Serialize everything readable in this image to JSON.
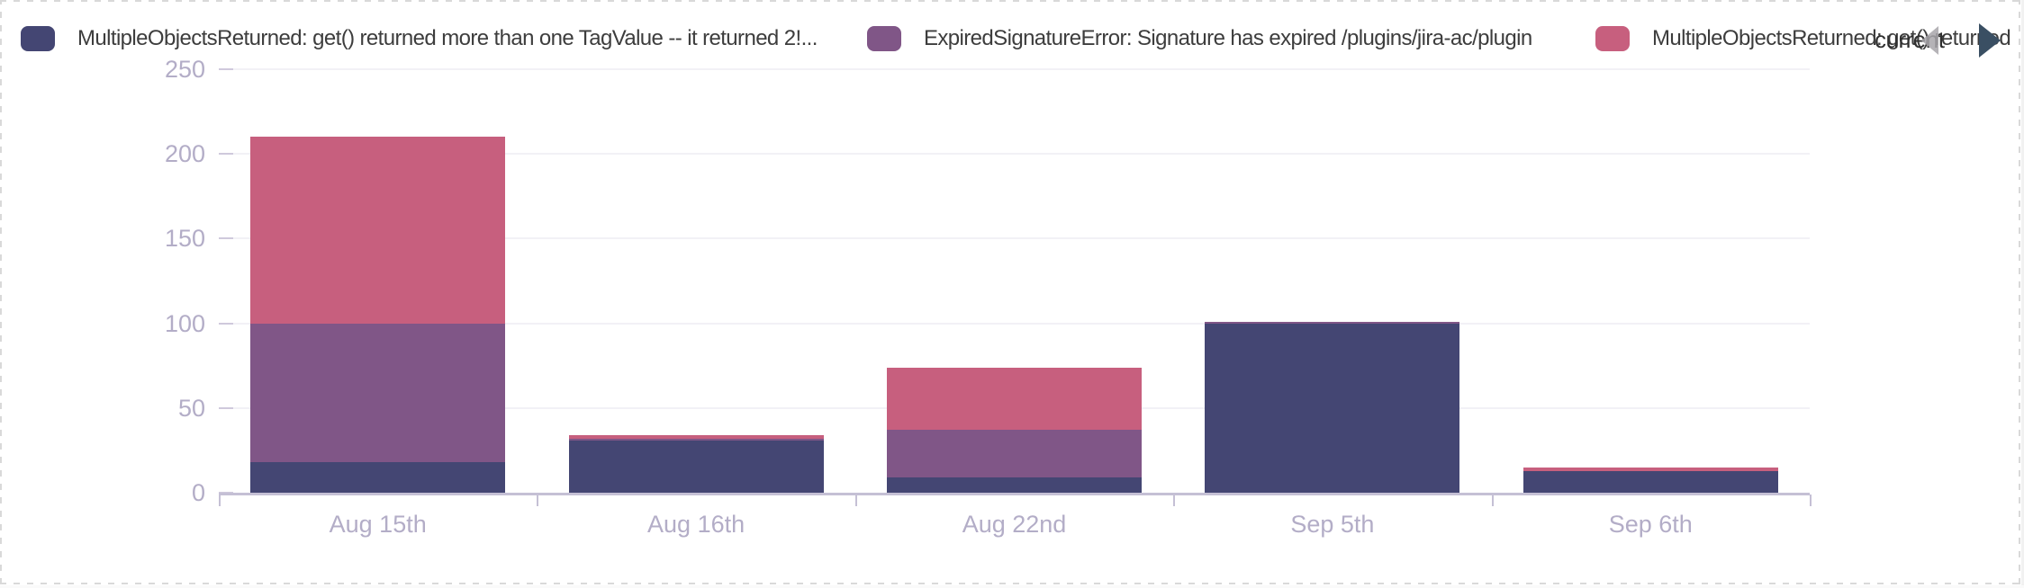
{
  "overlay": {
    "label": "current",
    "prev_icon": "left-triangle",
    "next_icon": "right-triangle",
    "prev_color": "#a8a6aa",
    "next_color": "#3a4f63"
  },
  "legend": {
    "position": "top",
    "items": [
      {
        "label": "MultipleObjectsReturned: get() returned more than one TagValue -- it returned 2!...",
        "color": "#444673"
      },
      {
        "label": "ExpiredSignatureError: Signature has expired /plugins/jira-ac/plugin",
        "color": "#805687"
      },
      {
        "label": "MultipleObjectsReturned: get() returned",
        "color": "#c75f7e"
      }
    ]
  },
  "chart_data": {
    "type": "bar",
    "stacked": true,
    "title": "",
    "xlabel": "",
    "ylabel": "",
    "categories": [
      "Aug 15th",
      "Aug 16th",
      "Aug 22nd",
      "Sep 5th",
      "Sep 6th"
    ],
    "series": [
      {
        "name": "MultipleObjectsReturned: get() returned more than one TagValue -- it returned 2!...",
        "color": "#444673",
        "values": [
          18,
          31,
          9,
          100,
          13
        ]
      },
      {
        "name": "ExpiredSignatureError: Signature has expired /plugins/jira-ac/plugin",
        "color": "#805687",
        "values": [
          82,
          1,
          28,
          1,
          0
        ]
      },
      {
        "name": "MultipleObjectsReturned: get() returned",
        "color": "#c75f7e",
        "values": [
          110,
          2,
          37,
          0,
          2
        ]
      }
    ],
    "totals": [
      210,
      34,
      74,
      101,
      15
    ],
    "yticks": [
      0,
      50,
      100,
      150,
      200,
      250
    ],
    "ylim": [
      0,
      250
    ],
    "grid": true,
    "legend_position": "top",
    "axis_text_color": "#b3adc7"
  }
}
